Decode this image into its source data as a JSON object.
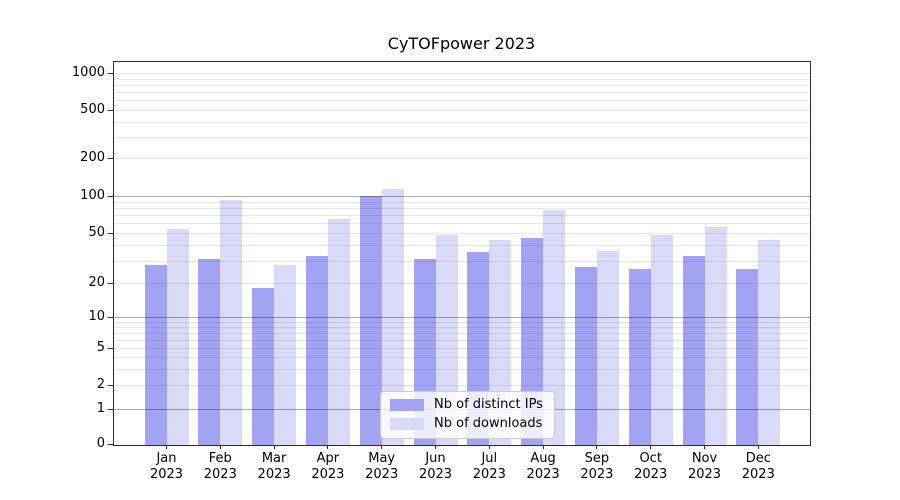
{
  "chart_data": {
    "type": "bar",
    "title": "CyTOFpower 2023",
    "categories": [
      "Jan",
      "Feb",
      "Mar",
      "Apr",
      "May",
      "Jun",
      "Jul",
      "Aug",
      "Sep",
      "Oct",
      "Nov",
      "Dec"
    ],
    "x_tick_year": "2023",
    "series": [
      {
        "name": "Nb of distinct IPs",
        "color": "#a3a3f3",
        "values": [
          28,
          31,
          18,
          33,
          100,
          31,
          35,
          46,
          27,
          26,
          33,
          26
        ]
      },
      {
        "name": "Nb of downloads",
        "color": "#d9d9f8",
        "values": [
          54,
          92,
          28,
          65,
          114,
          48,
          44,
          77,
          36,
          48,
          56,
          44
        ]
      }
    ],
    "yscale": "symlog",
    "ytick_values": [
      0,
      1,
      2,
      5,
      10,
      20,
      50,
      100,
      200,
      500,
      1000
    ],
    "ytick_labels": [
      "0",
      "1",
      "2",
      "5",
      "10",
      "20",
      "50",
      "100",
      "200",
      "500",
      "1000"
    ],
    "ylim": [
      0,
      1280
    ],
    "grid": "major-and-minor",
    "legend_position": "lower center"
  },
  "colors": {
    "background": "#ffffff",
    "spine": "#2e2e2e",
    "grid_major": "rgba(0,0,0,0.33)",
    "grid_minor": "rgba(0,0,0,0.09)",
    "legend_background": "rgba(255,255,255,0.8)",
    "legend_border": "#cccccc",
    "text": "#000000"
  }
}
